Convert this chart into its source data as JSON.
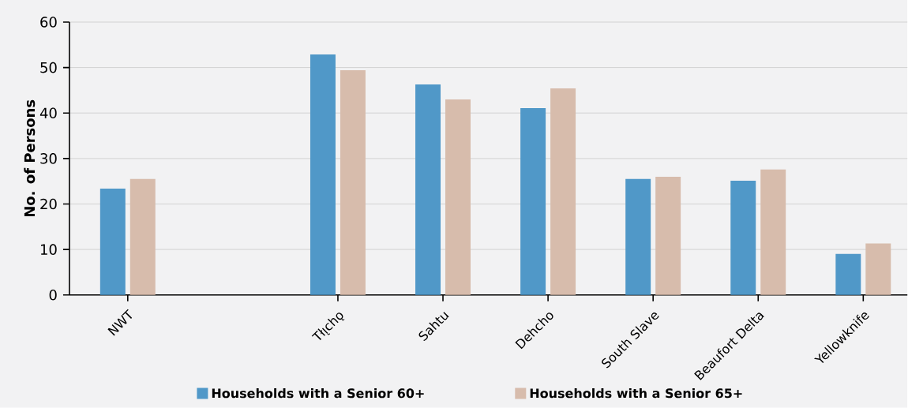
{
  "chart_data": {
    "type": "bar",
    "ylabel": "No. of Persons",
    "categories": [
      "NWT",
      null,
      "Tłı̨chǫ",
      "Sahtu",
      "Dehcho",
      "South Slave",
      "Beaufort Delta",
      "Yellowknife"
    ],
    "series": [
      {
        "name": "Households with a Senior 60+",
        "color": "#5098c8",
        "values": [
          23.4,
          null,
          52.9,
          46.3,
          41.1,
          25.5,
          25.1,
          9.0
        ]
      },
      {
        "name": "Households with a Senior 65+",
        "color": "#d7bcac",
        "values": [
          25.5,
          null,
          49.4,
          43.0,
          45.4,
          26.0,
          27.6,
          11.3
        ]
      }
    ],
    "ylim": [
      0,
      60
    ],
    "yticks": [
      0,
      10,
      20,
      30,
      40,
      50,
      60
    ],
    "grid": "y",
    "legend": "bottom"
  }
}
